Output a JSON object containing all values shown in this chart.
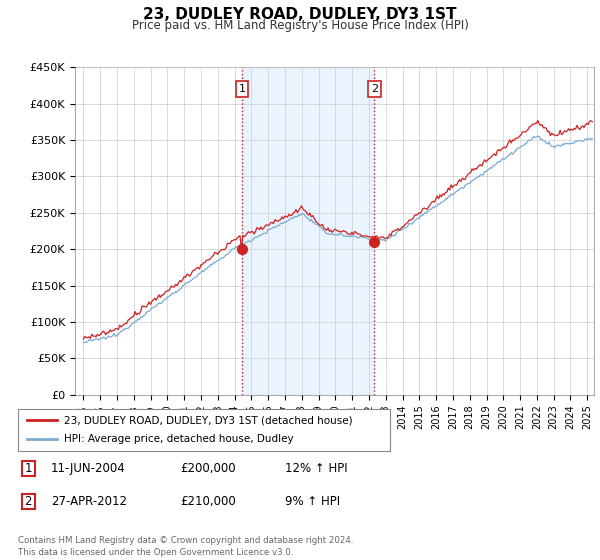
{
  "title": "23, DUDLEY ROAD, DUDLEY, DY3 1ST",
  "subtitle": "Price paid vs. HM Land Registry's House Price Index (HPI)",
  "ylabel_ticks": [
    "£0",
    "£50K",
    "£100K",
    "£150K",
    "£200K",
    "£250K",
    "£300K",
    "£350K",
    "£400K",
    "£450K"
  ],
  "ylim": [
    0,
    450000
  ],
  "xlim_start": 1994.5,
  "xlim_end": 2025.4,
  "background_color": "#ffffff",
  "plot_bg_color": "#ffffff",
  "grid_color": "#cccccc",
  "hpi_fill_color": "#ddeeff",
  "line_color_red": "#cc2222",
  "line_color_blue": "#7aaad0",
  "marker1_date": 2004.44,
  "marker1_value": 200000,
  "marker2_date": 2012.32,
  "marker2_value": 210000,
  "vline1_date": 2004.44,
  "vline2_date": 2012.32,
  "legend_line1": "23, DUDLEY ROAD, DUDLEY, DY3 1ST (detached house)",
  "legend_line2": "HPI: Average price, detached house, Dudley",
  "annotation1_date": "11-JUN-2004",
  "annotation1_price": "£200,000",
  "annotation1_hpi": "12% ↑ HPI",
  "annotation2_date": "27-APR-2012",
  "annotation2_price": "£210,000",
  "annotation2_hpi": "9% ↑ HPI",
  "footer": "Contains HM Land Registry data © Crown copyright and database right 2024.\nThis data is licensed under the Open Government Licence v3.0.",
  "xticks": [
    1995,
    1996,
    1997,
    1998,
    1999,
    2000,
    2001,
    2002,
    2003,
    2004,
    2005,
    2006,
    2007,
    2008,
    2009,
    2010,
    2011,
    2012,
    2013,
    2014,
    2015,
    2016,
    2017,
    2018,
    2019,
    2020,
    2021,
    2022,
    2023,
    2024,
    2025
  ]
}
